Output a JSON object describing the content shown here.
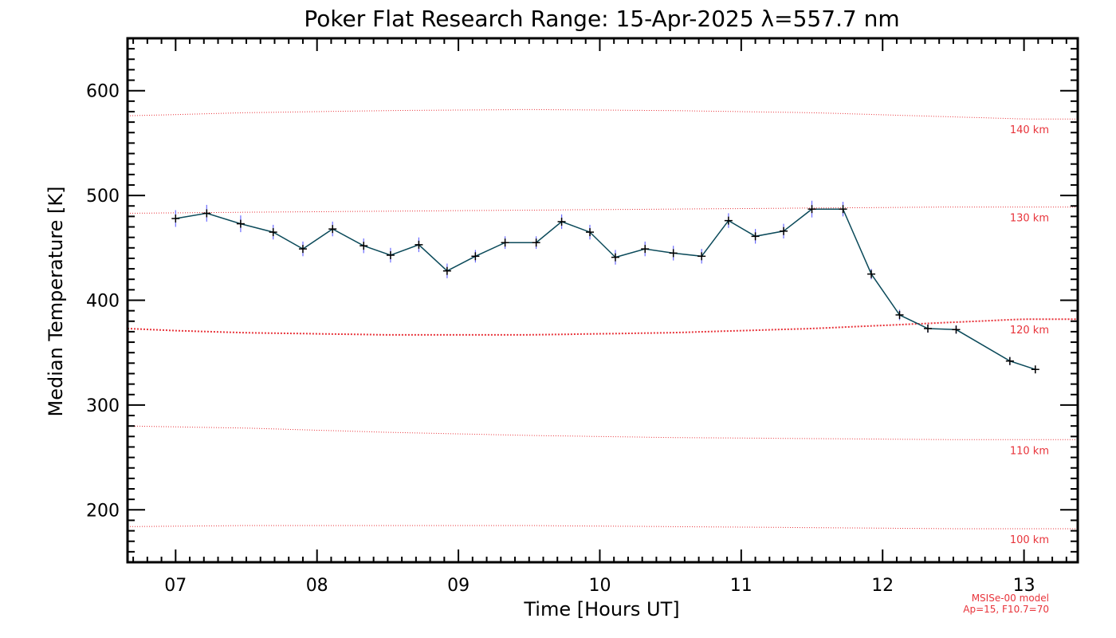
{
  "chart_data": {
    "type": "line",
    "title": "Poker Flat Research Range: 15-Apr-2025 λ=557.7 nm",
    "xlabel": "Time [Hours UT]",
    "ylabel": "Median Temperature [K]",
    "xlim": [
      6.66,
      13.38
    ],
    "ylim": [
      150,
      650
    ],
    "x_ticks": [
      7,
      8,
      9,
      10,
      11,
      12,
      13
    ],
    "x_tick_labels": [
      "07",
      "08",
      "09",
      "10",
      "11",
      "12",
      "13"
    ],
    "y_ticks": [
      200,
      300,
      400,
      500,
      600
    ],
    "y_tick_labels": [
      "200",
      "300",
      "400",
      "500",
      "600"
    ],
    "grid": false,
    "series": [
      {
        "color": "#0b4a5a",
        "marker": "+",
        "x": [
          7.0,
          7.22,
          7.46,
          7.69,
          7.9,
          8.11,
          8.33,
          8.52,
          8.72,
          8.92,
          9.12,
          9.33,
          9.55,
          9.73,
          9.93,
          10.11,
          10.32,
          10.52,
          10.72,
          10.91,
          11.1,
          11.3,
          11.5,
          11.72,
          11.92,
          12.12,
          12.32,
          12.52,
          12.9,
          13.08
        ],
        "y": [
          478,
          483,
          473,
          465,
          449,
          468,
          452,
          443,
          453,
          428,
          442,
          455,
          455,
          475,
          465,
          441,
          449,
          445,
          442,
          476,
          461,
          466,
          487,
          487,
          425,
          386,
          373,
          372,
          342,
          334
        ],
        "error": [
          8,
          8,
          8,
          7,
          7,
          7,
          7,
          7,
          7,
          7,
          6,
          6,
          6,
          7,
          7,
          7,
          7,
          7,
          7,
          7,
          7,
          7,
          8,
          7,
          5,
          5,
          4,
          4,
          4,
          3
        ]
      }
    ],
    "reference_lines": [
      {
        "label": "140 km",
        "x": [
          6.66,
          7.5,
          8.5,
          9.5,
          10.5,
          11.5,
          12.5,
          13.0
        ],
        "y": [
          576,
          579,
          581,
          582,
          581,
          579,
          575,
          573
        ]
      },
      {
        "label": "130 km",
        "x": [
          6.66,
          7.5,
          8.5,
          9.5,
          10.5,
          11.5,
          12.5,
          13.0
        ],
        "y": [
          483,
          484,
          485,
          486,
          487,
          488,
          489,
          489
        ]
      },
      {
        "label": "120 km",
        "x": [
          6.66,
          7.0,
          7.5,
          8.0,
          8.5,
          9.0,
          9.5,
          10.0,
          10.5,
          11.0,
          11.5,
          12.0,
          12.5,
          13.0
        ],
        "y": [
          373,
          371,
          369,
          368,
          367,
          367,
          367,
          368,
          369,
          371,
          373,
          376,
          379,
          382
        ]
      },
      {
        "label": "110 km",
        "x": [
          6.66,
          7.5,
          8.5,
          9.5,
          10.5,
          11.5,
          12.5,
          13.0
        ],
        "y": [
          280,
          278,
          274,
          271,
          269,
          268,
          267,
          267
        ]
      },
      {
        "label": "100 km",
        "x": [
          6.66,
          7.5,
          8.5,
          9.5,
          10.5,
          11.5,
          12.5,
          13.0
        ],
        "y": [
          184,
          185,
          185,
          185,
          184,
          183,
          182,
          182
        ]
      }
    ],
    "reference_color": "#e8333a",
    "annotation": [
      "MSISe-00 model",
      "Ap=15, F10.7=70"
    ]
  }
}
